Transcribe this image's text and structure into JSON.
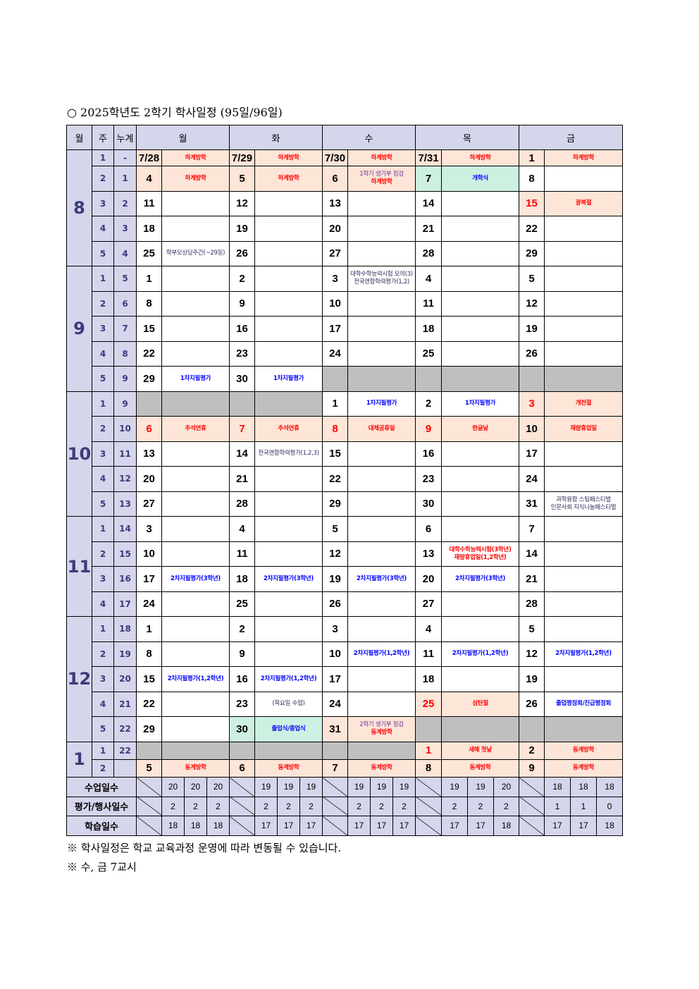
{
  "title": "○ 2025학년도 2학기 학사일정 (95일/96일)",
  "header": {
    "month": "월",
    "week": "주",
    "cumulative": "누계",
    "days": [
      "월",
      "화",
      "수",
      "목",
      "금"
    ]
  },
  "colors": {
    "red": "#ff0000",
    "blue": "#0000ff",
    "purple": "#7030a0",
    "dark": "#2e2e5c",
    "vacation_bg": "#fde5d7",
    "opening_bg": "#cdf0e1",
    "blank_bg": "#bfbfbf",
    "header_bg": "#d5d5ec"
  },
  "months": [
    {
      "month": "8",
      "rows": [
        {
          "week": "1",
          "cum": "-",
          "days": [
            {
              "d": "7/28",
              "bg": "vac",
              "ev": [
                {
                  "t": "하계방학",
                  "c": "red"
                }
              ]
            },
            {
              "d": "7/29",
              "bg": "vac",
              "ev": [
                {
                  "t": "하계방학",
                  "c": "red"
                }
              ]
            },
            {
              "d": "7/30",
              "bg": "vac",
              "ev": [
                {
                  "t": "하계방학",
                  "c": "red"
                }
              ]
            },
            {
              "d": "7/31",
              "bg": "vac",
              "ev": [
                {
                  "t": "하계방학",
                  "c": "red"
                }
              ]
            },
            {
              "d": "1",
              "bg": "vac",
              "ev": [
                {
                  "t": "하계방학",
                  "c": "red"
                }
              ]
            }
          ]
        },
        {
          "week": "2",
          "cum": "1",
          "days": [
            {
              "d": "4",
              "bg": "vac",
              "ev": [
                {
                  "t": "하계방학",
                  "c": "red"
                }
              ]
            },
            {
              "d": "5",
              "bg": "vac",
              "ev": [
                {
                  "t": "하계방학",
                  "c": "red"
                }
              ]
            },
            {
              "d": "6",
              "bg": "vac",
              "ev": [
                {
                  "t": "1학기 생기부 점검",
                  "c": "purple"
                },
                {
                  "t": "하계방학",
                  "c": "red"
                }
              ]
            },
            {
              "d": "7",
              "bg": "open",
              "ev": [
                {
                  "t": "개학식",
                  "c": "blue"
                }
              ]
            },
            {
              "d": "8"
            }
          ]
        },
        {
          "week": "3",
          "cum": "2",
          "days": [
            {
              "d": "11"
            },
            {
              "d": "12"
            },
            {
              "d": "13"
            },
            {
              "d": "14"
            },
            {
              "d": "15",
              "red": true,
              "bg": "vac",
              "ev": [
                {
                  "t": "광복절",
                  "c": "red"
                }
              ]
            }
          ]
        },
        {
          "week": "4",
          "cum": "3",
          "days": [
            {
              "d": "18"
            },
            {
              "d": "19"
            },
            {
              "d": "20"
            },
            {
              "d": "21"
            },
            {
              "d": "22"
            }
          ]
        },
        {
          "week": "5",
          "cum": "4",
          "days": [
            {
              "d": "25",
              "ev": [
                {
                  "t": "학부모상담주간(~29일)",
                  "c": "dark"
                }
              ]
            },
            {
              "d": "26"
            },
            {
              "d": "27"
            },
            {
              "d": "28"
            },
            {
              "d": "29"
            }
          ]
        }
      ]
    },
    {
      "month": "9",
      "rows": [
        {
          "week": "1",
          "cum": "5",
          "days": [
            {
              "d": "1"
            },
            {
              "d": "2"
            },
            {
              "d": "3",
              "ev": [
                {
                  "t": "대학수학능력시험 모의(3)",
                  "c": "dark"
                },
                {
                  "t": "전국연합학력평가(1,2)",
                  "c": "dark"
                }
              ]
            },
            {
              "d": "4"
            },
            {
              "d": "5"
            }
          ]
        },
        {
          "week": "2",
          "cum": "6",
          "days": [
            {
              "d": "8"
            },
            {
              "d": "9"
            },
            {
              "d": "10"
            },
            {
              "d": "11"
            },
            {
              "d": "12"
            }
          ]
        },
        {
          "week": "3",
          "cum": "7",
          "days": [
            {
              "d": "15"
            },
            {
              "d": "16"
            },
            {
              "d": "17"
            },
            {
              "d": "18"
            },
            {
              "d": "19"
            }
          ]
        },
        {
          "week": "4",
          "cum": "8",
          "days": [
            {
              "d": "22"
            },
            {
              "d": "23"
            },
            {
              "d": "24"
            },
            {
              "d": "25"
            },
            {
              "d": "26"
            }
          ]
        },
        {
          "week": "5",
          "cum": "9",
          "days": [
            {
              "d": "29",
              "ev": [
                {
                  "t": "1차지필평가",
                  "c": "blue"
                }
              ]
            },
            {
              "d": "30",
              "ev": [
                {
                  "t": "1차지필평가",
                  "c": "blue"
                }
              ]
            },
            {
              "blank": true
            },
            {
              "blank": true
            },
            {
              "blank": true
            }
          ]
        }
      ]
    },
    {
      "month": "10",
      "rows": [
        {
          "week": "1",
          "cum": "9",
          "days": [
            {
              "blank": true
            },
            {
              "blank": true
            },
            {
              "d": "1",
              "ev": [
                {
                  "t": "1차지필평가",
                  "c": "blue"
                }
              ]
            },
            {
              "d": "2",
              "ev": [
                {
                  "t": "1차지필평가",
                  "c": "blue"
                }
              ]
            },
            {
              "d": "3",
              "red": true,
              "bg": "vac",
              "ev": [
                {
                  "t": "개천절",
                  "c": "red"
                }
              ]
            }
          ]
        },
        {
          "week": "2",
          "cum": "10",
          "days": [
            {
              "d": "6",
              "red": true,
              "bg": "vac",
              "ev": [
                {
                  "t": "추석연휴",
                  "c": "red"
                }
              ]
            },
            {
              "d": "7",
              "red": true,
              "bg": "vac",
              "ev": [
                {
                  "t": "추석연휴",
                  "c": "red"
                }
              ]
            },
            {
              "d": "8",
              "red": true,
              "bg": "vac",
              "ev": [
                {
                  "t": "대체공휴일",
                  "c": "red"
                }
              ]
            },
            {
              "d": "9",
              "red": true,
              "bg": "vac",
              "ev": [
                {
                  "t": "한글날",
                  "c": "red"
                }
              ]
            },
            {
              "d": "10",
              "bg": "vac",
              "ev": [
                {
                  "t": "재량휴업일",
                  "c": "red"
                }
              ]
            }
          ]
        },
        {
          "week": "3",
          "cum": "11",
          "days": [
            {
              "d": "13"
            },
            {
              "d": "14",
              "ev": [
                {
                  "t": "전국연합학력평가(1,2,3)",
                  "c": "dark"
                }
              ]
            },
            {
              "d": "15"
            },
            {
              "d": "16"
            },
            {
              "d": "17"
            }
          ]
        },
        {
          "week": "4",
          "cum": "12",
          "days": [
            {
              "d": "20"
            },
            {
              "d": "21"
            },
            {
              "d": "22"
            },
            {
              "d": "23"
            },
            {
              "d": "24"
            }
          ]
        },
        {
          "week": "5",
          "cum": "13",
          "days": [
            {
              "d": "27"
            },
            {
              "d": "28"
            },
            {
              "d": "29"
            },
            {
              "d": "30"
            },
            {
              "d": "31",
              "ev": [
                {
                  "t": "과학융합 스팀페스티벌",
                  "c": "dark"
                },
                {
                  "t": "인문사회 지식나눔페스티벌",
                  "c": "dark"
                }
              ]
            }
          ]
        }
      ]
    },
    {
      "month": "11",
      "rows": [
        {
          "week": "1",
          "cum": "14",
          "days": [
            {
              "d": "3"
            },
            {
              "d": "4"
            },
            {
              "d": "5"
            },
            {
              "d": "6"
            },
            {
              "d": "7"
            }
          ]
        },
        {
          "week": "2",
          "cum": "15",
          "days": [
            {
              "d": "10"
            },
            {
              "d": "11"
            },
            {
              "d": "12"
            },
            {
              "d": "13",
              "ev": [
                {
                  "t": "대학수학능력시험(3학년)",
                  "c": "red"
                },
                {
                  "t": "재량휴업일(1,2학년)",
                  "c": "red"
                }
              ]
            },
            {
              "d": "14"
            }
          ]
        },
        {
          "week": "3",
          "cum": "16",
          "days": [
            {
              "d": "17",
              "ev": [
                {
                  "t": "2차지필평가(3학년)",
                  "c": "blue"
                }
              ]
            },
            {
              "d": "18",
              "ev": [
                {
                  "t": "2차지필평가(3학년)",
                  "c": "blue"
                }
              ]
            },
            {
              "d": "19",
              "ev": [
                {
                  "t": "2차지필평가(3학년)",
                  "c": "blue"
                }
              ]
            },
            {
              "d": "20",
              "ev": [
                {
                  "t": "2차지필평가(3학년)",
                  "c": "blue"
                }
              ]
            },
            {
              "d": "21"
            }
          ]
        },
        {
          "week": "4",
          "cum": "17",
          "days": [
            {
              "d": "24"
            },
            {
              "d": "25"
            },
            {
              "d": "26"
            },
            {
              "d": "27"
            },
            {
              "d": "28"
            }
          ]
        }
      ]
    },
    {
      "month": "12",
      "rows": [
        {
          "week": "1",
          "cum": "18",
          "days": [
            {
              "d": "1"
            },
            {
              "d": "2"
            },
            {
              "d": "3"
            },
            {
              "d": "4"
            },
            {
              "d": "5"
            }
          ]
        },
        {
          "week": "2",
          "cum": "19",
          "days": [
            {
              "d": "8"
            },
            {
              "d": "9"
            },
            {
              "d": "10",
              "ev": [
                {
                  "t": "2차지필평가(1,2학년)",
                  "c": "blue"
                }
              ]
            },
            {
              "d": "11",
              "ev": [
                {
                  "t": "2차지필평가(1,2학년)",
                  "c": "blue"
                }
              ]
            },
            {
              "d": "12",
              "ev": [
                {
                  "t": "2차지필평가(1,2학년)",
                  "c": "blue"
                }
              ]
            }
          ]
        },
        {
          "week": "3",
          "cum": "20",
          "days": [
            {
              "d": "15",
              "ev": [
                {
                  "t": "2차지필평가(1,2학년)",
                  "c": "blue"
                }
              ]
            },
            {
              "d": "16",
              "ev": [
                {
                  "t": "2차지필평가(1,2학년)",
                  "c": "blue"
                }
              ]
            },
            {
              "d": "17"
            },
            {
              "d": "18"
            },
            {
              "d": "19"
            }
          ]
        },
        {
          "week": "4",
          "cum": "21",
          "days": [
            {
              "d": "22"
            },
            {
              "d": "23",
              "ev": [
                {
                  "t": "(목요일 수업)",
                  "c": "dark"
                }
              ]
            },
            {
              "d": "24"
            },
            {
              "d": "25",
              "red": true,
              "bg": "vac",
              "ev": [
                {
                  "t": "성탄절",
                  "c": "red"
                }
              ]
            },
            {
              "d": "26",
              "ev": [
                {
                  "t": "졸업평정회/진급평정회",
                  "c": "blue"
                }
              ]
            }
          ]
        },
        {
          "week": "5",
          "cum": "22",
          "days": [
            {
              "d": "29"
            },
            {
              "d": "30",
              "bg": "open",
              "ev": [
                {
                  "t": "졸업식/종업식",
                  "c": "blue"
                }
              ]
            },
            {
              "d": "31",
              "bg": "vac",
              "ev": [
                {
                  "t": "2학기 생기부 점검",
                  "c": "purple"
                },
                {
                  "t": "동계방학",
                  "c": "red"
                }
              ]
            },
            {
              "blank": true
            },
            {
              "blank": true
            }
          ]
        }
      ]
    },
    {
      "month": "1",
      "rows": [
        {
          "week": "1",
          "cum": "22",
          "days": [
            {
              "blank": true
            },
            {
              "blank": true
            },
            {
              "blank": true
            },
            {
              "d": "1",
              "red": true,
              "bg": "vac",
              "ev": [
                {
                  "t": "새해 첫날",
                  "c": "red"
                }
              ]
            },
            {
              "d": "2",
              "bg": "vac",
              "ev": [
                {
                  "t": "동계방학",
                  "c": "red"
                }
              ]
            }
          ]
        },
        {
          "week": "2",
          "cum": "",
          "days": [
            {
              "d": "5",
              "bg": "vac",
              "ev": [
                {
                  "t": "동계방학",
                  "c": "red"
                }
              ]
            },
            {
              "d": "6",
              "bg": "vac",
              "ev": [
                {
                  "t": "동계방학",
                  "c": "red"
                }
              ]
            },
            {
              "d": "7",
              "bg": "vac",
              "ev": [
                {
                  "t": "동계방학",
                  "c": "red"
                }
              ]
            },
            {
              "d": "8",
              "bg": "vac",
              "ev": [
                {
                  "t": "동계방학",
                  "c": "red"
                }
              ]
            },
            {
              "d": "9",
              "bg": "vac",
              "ev": [
                {
                  "t": "동계방학",
                  "c": "red"
                }
              ]
            }
          ]
        }
      ]
    }
  ],
  "summary": [
    {
      "label": "수업일수",
      "values": [
        [
          "20",
          "20",
          "20"
        ],
        [
          "19",
          "19",
          "19"
        ],
        [
          "19",
          "19",
          "19"
        ],
        [
          "19",
          "19",
          "20"
        ],
        [
          "18",
          "18",
          "18"
        ]
      ]
    },
    {
      "label": "평가/행사일수",
      "values": [
        [
          "2",
          "2",
          "2"
        ],
        [
          "2",
          "2",
          "2"
        ],
        [
          "2",
          "2",
          "2"
        ],
        [
          "2",
          "2",
          "2"
        ],
        [
          "1",
          "1",
          "0"
        ]
      ]
    },
    {
      "label": "학습일수",
      "values": [
        [
          "18",
          "18",
          "18"
        ],
        [
          "17",
          "17",
          "17"
        ],
        [
          "17",
          "17",
          "17"
        ],
        [
          "17",
          "17",
          "18"
        ],
        [
          "17",
          "17",
          "18"
        ]
      ]
    }
  ],
  "notes": [
    "※ 학사일정은 학교 교육과정 운영에 따라 변동될 수 있습니다.",
    "※ 수, 금 7교시"
  ]
}
